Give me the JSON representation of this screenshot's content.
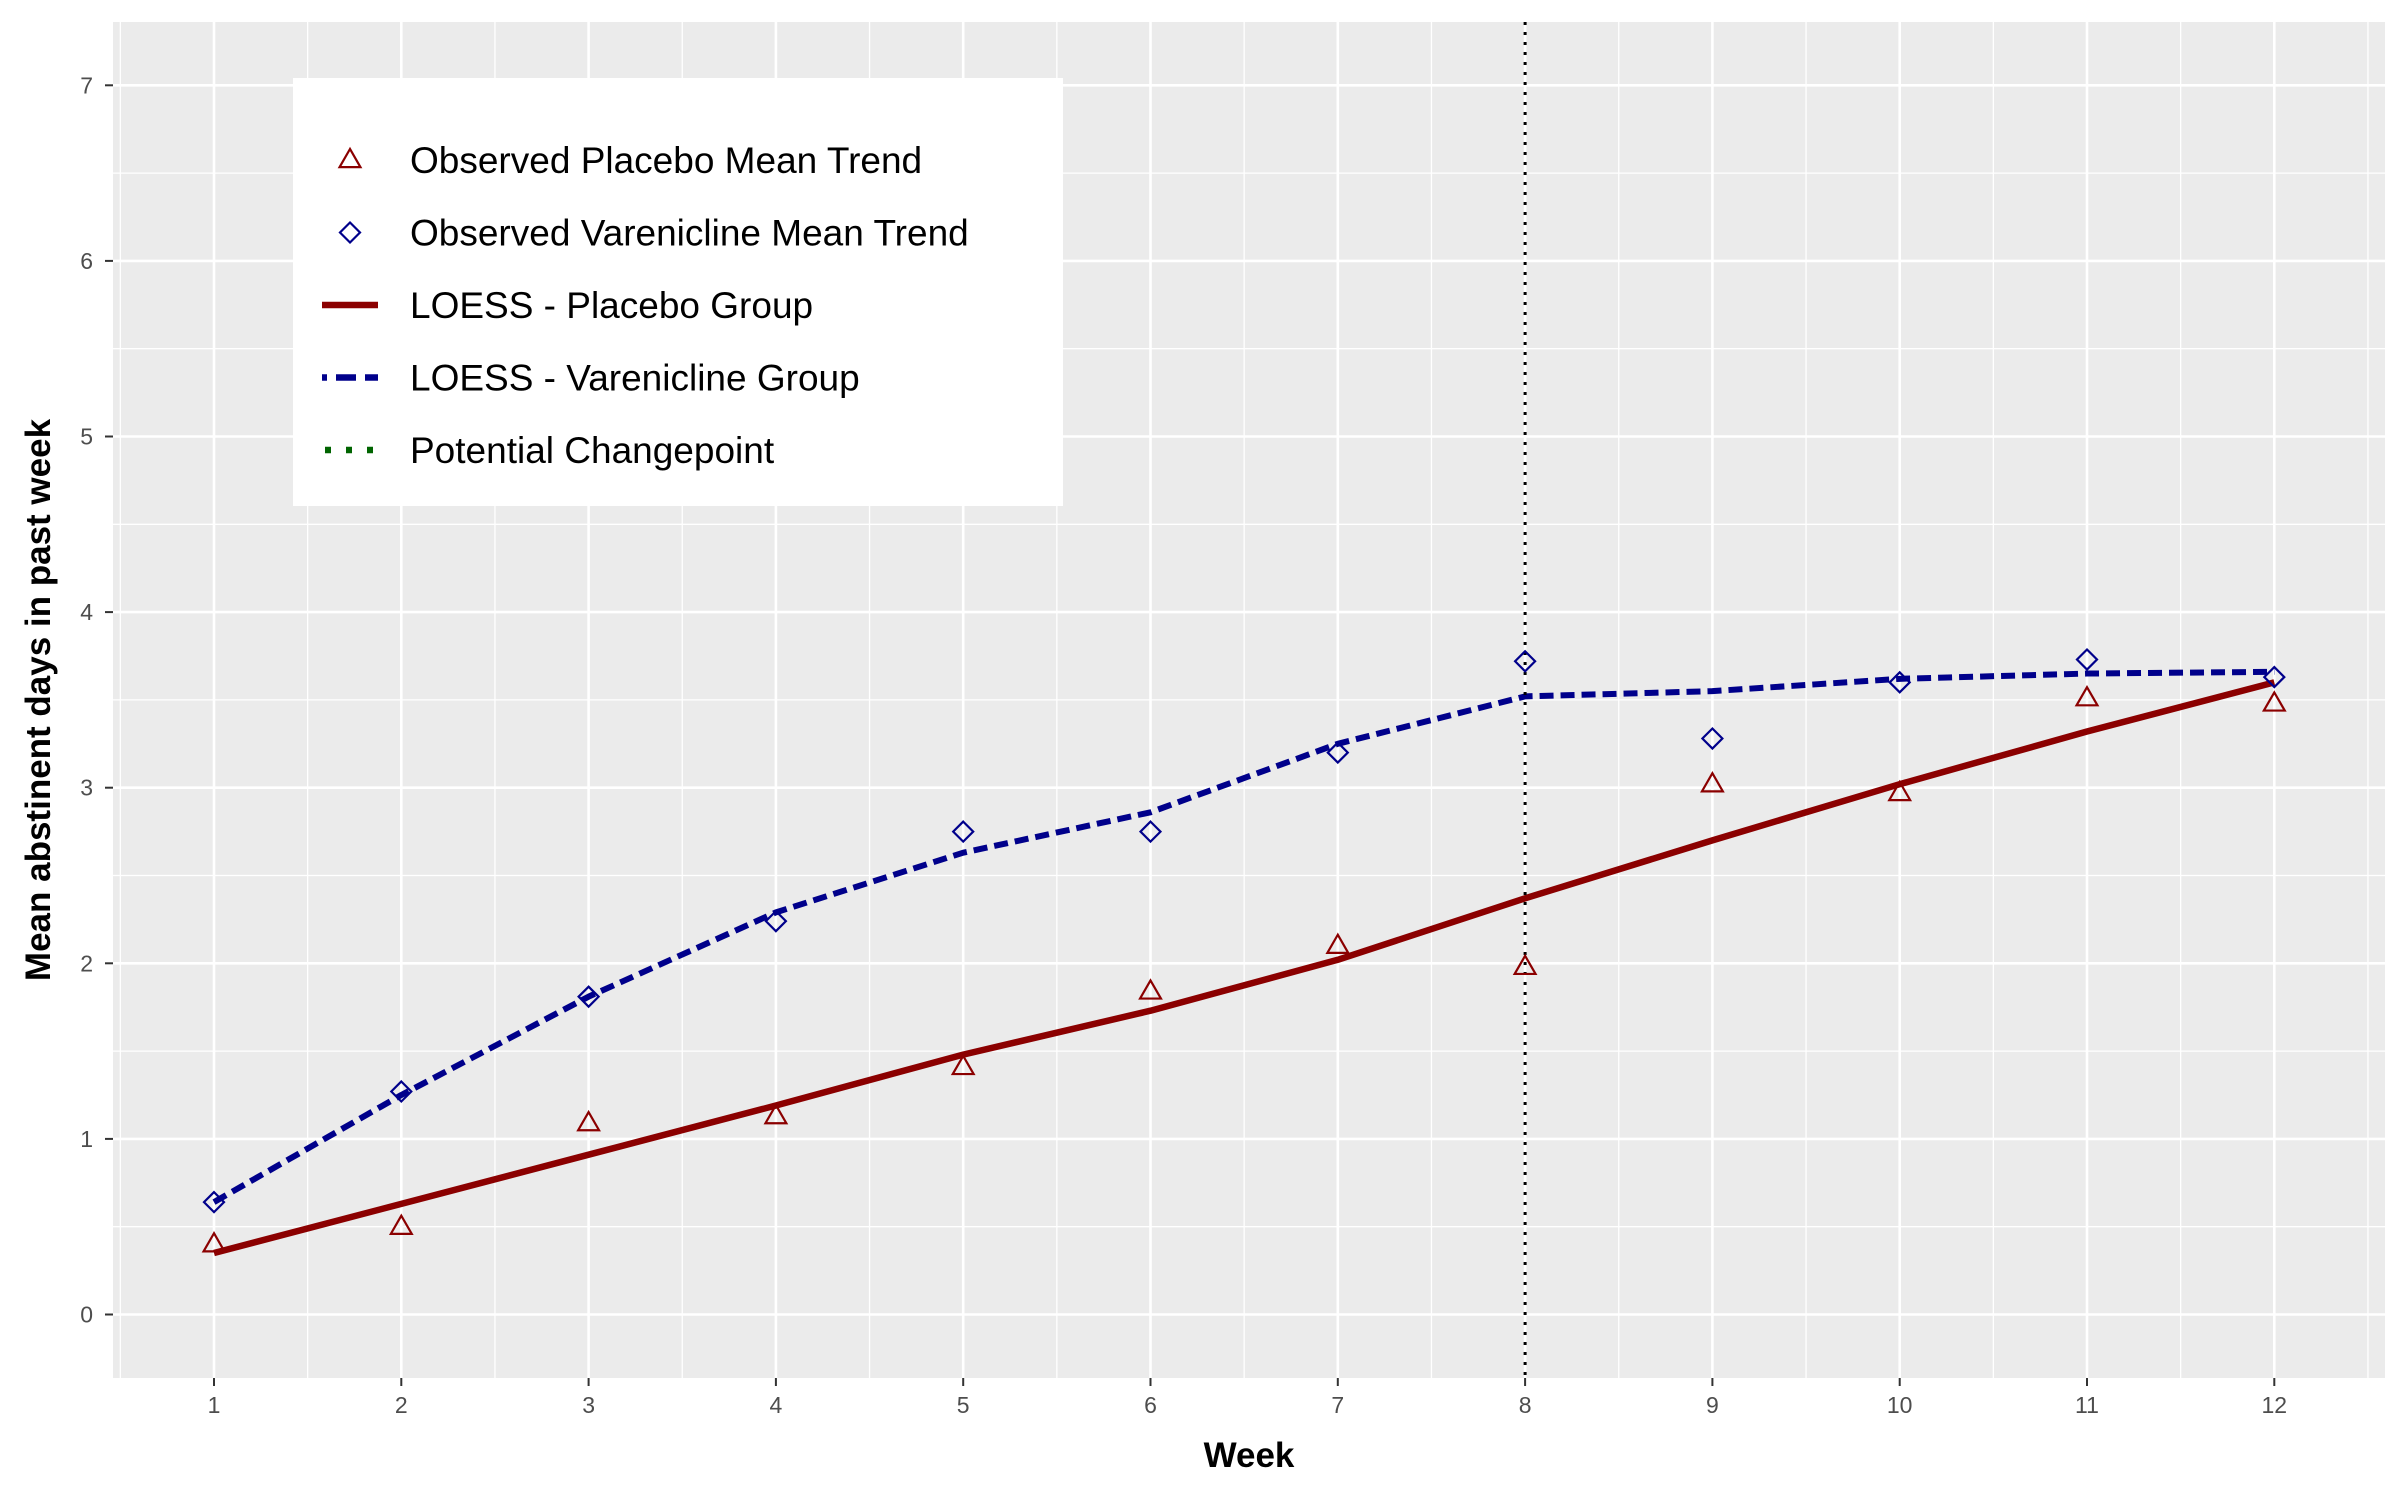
{
  "chart_data": {
    "type": "line",
    "title": "",
    "xlabel": "Week",
    "ylabel": "Mean abstinent days in past week",
    "xlim": [
      0.5,
      12.5
    ],
    "ylim": [
      -0.35,
      7.3
    ],
    "x_ticks": [
      1,
      2,
      3,
      4,
      5,
      6,
      7,
      8,
      9,
      10,
      11,
      12
    ],
    "y_ticks": [
      0,
      1,
      2,
      3,
      4,
      5,
      6,
      7
    ],
    "grid": true,
    "legend_position": "top-left",
    "x": [
      1,
      2,
      3,
      4,
      5,
      6,
      7,
      8,
      9,
      10,
      11,
      12
    ],
    "series": [
      {
        "name": "Observed Placebo Mean Trend",
        "kind": "points",
        "marker": "triangle",
        "color": "#8b0000",
        "values": [
          0.4,
          0.5,
          1.09,
          1.13,
          1.41,
          1.84,
          2.1,
          1.98,
          3.02,
          2.97,
          3.51,
          3.48
        ]
      },
      {
        "name": "Observed Varenicline Mean Trend",
        "kind": "points",
        "marker": "diamond",
        "color": "#00008b",
        "values": [
          0.64,
          1.27,
          1.81,
          2.24,
          2.75,
          2.75,
          3.2,
          3.72,
          3.28,
          3.6,
          3.73,
          3.63
        ]
      },
      {
        "name": "LOESS - Placebo Group",
        "kind": "line",
        "style": "solid",
        "color": "#8b0000",
        "values": [
          0.35,
          0.63,
          0.91,
          1.19,
          1.48,
          1.73,
          2.02,
          2.37,
          2.7,
          3.02,
          3.32,
          3.6
        ]
      },
      {
        "name": "LOESS - Varenicline Group",
        "kind": "line",
        "style": "dashed",
        "color": "#00008b",
        "values": [
          0.64,
          1.25,
          1.81,
          2.29,
          2.63,
          2.86,
          3.25,
          3.52,
          3.55,
          3.62,
          3.65,
          3.66
        ]
      }
    ],
    "reference_lines": [
      {
        "name": "Potential Changepoint",
        "orientation": "vertical",
        "x": 8,
        "style": "dotted",
        "color": "#000000",
        "legend_color": "#006400"
      }
    ]
  }
}
